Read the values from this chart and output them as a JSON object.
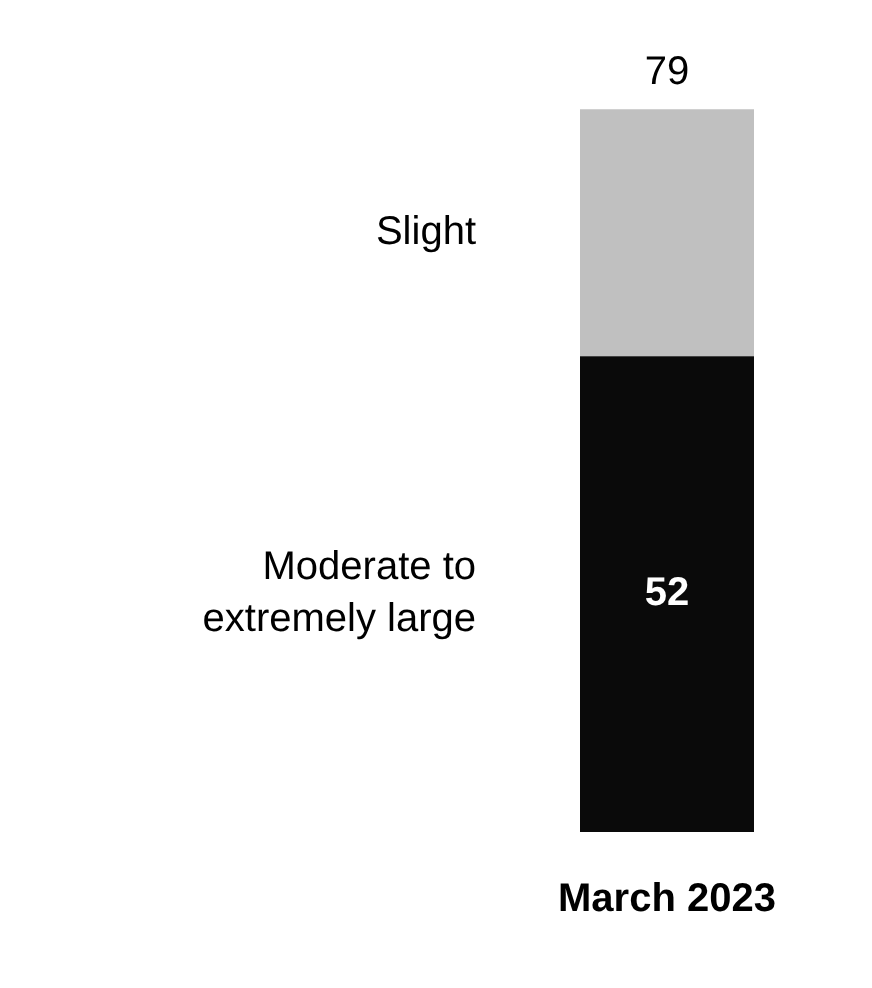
{
  "chart_data": {
    "type": "bar",
    "stacked": true,
    "categories": [
      "March 2023"
    ],
    "series": [
      {
        "name": "Moderate to extremely large",
        "color": "#0a0a0a",
        "values": [
          52
        ],
        "value_labels": [
          "52"
        ]
      },
      {
        "name": "Slight",
        "color": "#c0c0c0",
        "values": [
          27
        ]
      }
    ],
    "totals": [
      "79"
    ],
    "legend": false,
    "grid": false,
    "tick_labels": "x"
  }
}
